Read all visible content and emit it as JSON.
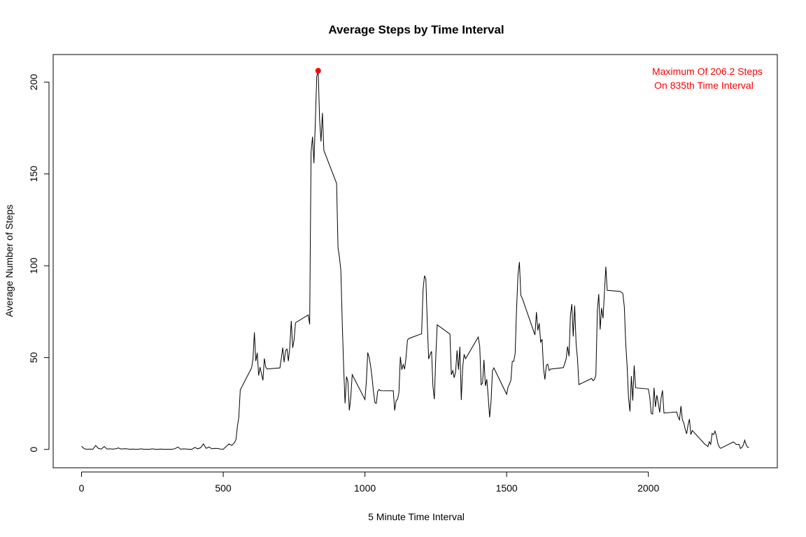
{
  "chart_data": {
    "type": "line",
    "title": "Average Steps by Time Interval",
    "xlabel": "5 Minute Time Interval",
    "ylabel": "Average Number of Steps",
    "xlim": [
      -100,
      2455
    ],
    "ylim": [
      -10,
      215
    ],
    "x_ticks": [
      0,
      500,
      1000,
      1500,
      2000
    ],
    "y_ticks": [
      0,
      50,
      100,
      150,
      200
    ],
    "grid": false,
    "legend": "none",
    "line_color": "#000000",
    "highlight_color": "#ff0000",
    "max_point": {
      "x": 835,
      "y": 206.2
    },
    "annotation": [
      "Maximum Of 206.2 Steps",
      "On 835th Time Interval"
    ],
    "series": [
      {
        "x": [
          0,
          10,
          20,
          30,
          40,
          50,
          60,
          70,
          80,
          90,
          100,
          110,
          120,
          130,
          140,
          150,
          160,
          170,
          180,
          190,
          200,
          210,
          220,
          230,
          240,
          250,
          260,
          270,
          280,
          290,
          300,
          310,
          320,
          330,
          340,
          350,
          360,
          370,
          380,
          390,
          400,
          410,
          420,
          430,
          440,
          450,
          460,
          470,
          480,
          490,
          500,
          510,
          520,
          530,
          540,
          545,
          550,
          555,
          560,
          600,
          605,
          610,
          615,
          620,
          625,
          630,
          640,
          645,
          650,
          655,
          700,
          705,
          710,
          715,
          720,
          725,
          730,
          735,
          740,
          745,
          750,
          755,
          800,
          805,
          810,
          815,
          820,
          825,
          830,
          835,
          840,
          845,
          850,
          855,
          900,
          905,
          910,
          915,
          920,
          925,
          930,
          935,
          940,
          945,
          950,
          955,
          1000,
          1005,
          1010,
          1015,
          1020,
          1025,
          1030,
          1035,
          1040,
          1045,
          1050,
          1055,
          1100,
          1105,
          1110,
          1115,
          1120,
          1125,
          1130,
          1135,
          1140,
          1145,
          1150,
          1155,
          1200,
          1205,
          1210,
          1215,
          1220,
          1225,
          1230,
          1235,
          1240,
          1245,
          1250,
          1255,
          1300,
          1305,
          1310,
          1315,
          1320,
          1325,
          1330,
          1335,
          1340,
          1345,
          1350,
          1355,
          1400,
          1405,
          1410,
          1415,
          1420,
          1425,
          1430,
          1435,
          1440,
          1445,
          1450,
          1455,
          1500,
          1505,
          1510,
          1515,
          1520,
          1525,
          1530,
          1535,
          1540,
          1545,
          1550,
          1555,
          1600,
          1605,
          1610,
          1615,
          1620,
          1625,
          1630,
          1635,
          1640,
          1645,
          1650,
          1655,
          1700,
          1705,
          1710,
          1715,
          1720,
          1725,
          1730,
          1735,
          1740,
          1745,
          1750,
          1755,
          1800,
          1805,
          1810,
          1815,
          1820,
          1825,
          1830,
          1835,
          1840,
          1845,
          1850,
          1855,
          1900,
          1905,
          1910,
          1915,
          1920,
          1925,
          1930,
          1935,
          1940,
          1945,
          1950,
          1955,
          2000,
          2005,
          2010,
          2015,
          2020,
          2025,
          2030,
          2035,
          2040,
          2045,
          2050,
          2055,
          2100,
          2105,
          2110,
          2115,
          2120,
          2125,
          2130,
          2135,
          2140,
          2145,
          2150,
          2155,
          2200,
          2205,
          2210,
          2215,
          2220,
          2225,
          2230,
          2235,
          2240,
          2245,
          2250,
          2255,
          2300,
          2305,
          2310,
          2315,
          2320,
          2325,
          2330,
          2335,
          2340,
          2345,
          2350,
          2355
        ],
        "y": [
          1.7,
          0.3,
          0.1,
          0.2,
          0.1,
          2.1,
          0.5,
          0.2,
          1.6,
          0.2,
          0.3,
          0.2,
          0.3,
          0.8,
          0.2,
          0.4,
          0.3,
          0.1,
          0.2,
          0.1,
          0.1,
          0.3,
          0.1,
          0.1,
          0.1,
          0.3,
          0.1,
          0.1,
          0.2,
          0.1,
          0.1,
          0.1,
          0.1,
          0.4,
          1.3,
          0.1,
          0.3,
          0.2,
          0.1,
          0.1,
          1.1,
          0.3,
          0.9,
          3.0,
          0.6,
          1.3,
          0.3,
          0.6,
          0.5,
          0.2,
          0.1,
          1.5,
          3.0,
          2.2,
          3.8,
          5.5,
          12.5,
          17.4,
          32.4,
          44.4,
          49.3,
          63.7,
          48.1,
          52.6,
          40.2,
          44.8,
          37.6,
          49.5,
          44.9,
          43.8,
          44.4,
          49.6,
          55.4,
          47.5,
          53.9,
          54.7,
          48.1,
          55.8,
          70.0,
          55.3,
          59.6,
          69.0,
          73.2,
          68.1,
          161.8,
          170.2,
          155.8,
          178.2,
          203.0,
          206.2,
          179.6,
          167.6,
          183.2,
          162.8,
          144.8,
          110.0,
          104.8,
          97.4,
          68.5,
          44.6,
          25.1,
          39.7,
          36.8,
          21.2,
          28.1,
          40.7,
          27.2,
          36.7,
          52.7,
          50.0,
          45.4,
          39.4,
          31.8,
          25.5,
          25.1,
          31.6,
          32.6,
          32.0,
          31.9,
          21.2,
          26.6,
          27.3,
          31.0,
          50.4,
          43.4,
          46.2,
          43.7,
          50.0,
          59.5,
          60.4,
          63.0,
          86.6,
          94.6,
          92.8,
          68.8,
          49.2,
          51.8,
          53.4,
          34.4,
          27.3,
          50.6,
          67.8,
          62.8,
          40.6,
          42.9,
          39.0,
          42.4,
          53.9,
          43.4,
          55.9,
          26.9,
          45.1,
          51.8,
          49.4,
          61.2,
          56.0,
          35.2,
          36.1,
          48.8,
          34.6,
          38.2,
          28.7,
          17.4,
          26.4,
          42.9,
          44.4,
          30.0,
          34.0,
          35.6,
          37.7,
          48.0,
          48.0,
          52.3,
          76.3,
          94.7,
          102.0,
          83.9,
          82.4,
          62.3,
          74.8,
          64.8,
          68.7,
          58.4,
          60.0,
          44.3,
          38.1,
          45.8,
          46.4,
          43.0,
          43.7,
          44.5,
          46.8,
          49.3,
          56.1,
          50.7,
          72.9,
          79.1,
          61.5,
          78.2,
          57.7,
          49.4,
          35.3,
          38.6,
          37.4,
          38.1,
          40.5,
          75.9,
          84.6,
          65.3,
          77.0,
          71.4,
          85.4,
          99.5,
          86.6,
          86.0,
          85.6,
          84.9,
          77.8,
          58.0,
          45.7,
          28.3,
          20.7,
          39.9,
          26.6,
          45.7,
          33.5,
          32.9,
          28.5,
          19.7,
          19.2,
          33.6,
          23.1,
          29.5,
          25.1,
          20.1,
          28.0,
          32.1,
          19.8,
          20.4,
          17.6,
          16.1,
          23.6,
          16.0,
          14.6,
          11.0,
          8.5,
          13.3,
          16.5,
          8.1,
          10.3,
          2.7,
          2.3,
          1.5,
          4.2,
          2.7,
          8.7,
          8.0,
          10.0,
          7.5,
          3.4,
          1.3,
          0.6,
          4.1,
          3.4,
          2.7,
          2.7,
          2.8,
          0.5,
          1.1,
          2.4,
          5.0,
          2.6,
          1.1,
          1.1
        ]
      }
    ]
  }
}
